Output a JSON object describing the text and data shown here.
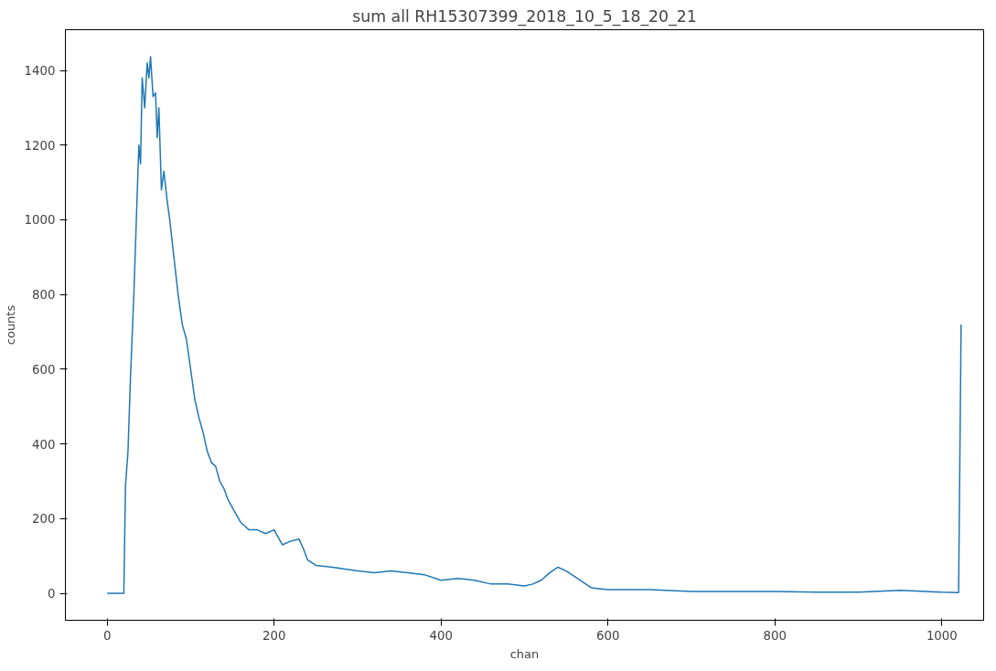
{
  "chart_data": {
    "type": "line",
    "title": "sum all RH15307399_2018_10_5_18_20_21",
    "xlabel": "chan",
    "ylabel": "counts",
    "x": [
      0,
      10,
      20,
      22,
      25,
      28,
      32,
      35,
      38,
      40,
      42,
      45,
      48,
      50,
      52,
      55,
      58,
      60,
      62,
      65,
      68,
      72,
      75,
      80,
      85,
      90,
      95,
      100,
      105,
      110,
      115,
      120,
      125,
      130,
      135,
      140,
      145,
      150,
      155,
      160,
      165,
      170,
      180,
      190,
      200,
      205,
      210,
      220,
      230,
      235,
      240,
      250,
      270,
      300,
      320,
      340,
      360,
      380,
      400,
      420,
      440,
      460,
      480,
      500,
      510,
      520,
      530,
      540,
      550,
      560,
      570,
      580,
      600,
      650,
      700,
      750,
      800,
      850,
      900,
      950,
      1000,
      1020,
      1023
    ],
    "series": [
      {
        "color": "#1f77b4",
        "values": [
          0,
          0,
          0,
          290,
          380,
          580,
          800,
          1000,
          1200,
          1150,
          1380,
          1300,
          1420,
          1380,
          1437,
          1330,
          1340,
          1220,
          1300,
          1080,
          1130,
          1050,
          1000,
          900,
          800,
          720,
          680,
          600,
          520,
          470,
          430,
          380,
          350,
          340,
          300,
          280,
          250,
          230,
          210,
          190,
          180,
          170,
          170,
          160,
          170,
          150,
          130,
          140,
          145,
          120,
          90,
          75,
          70,
          60,
          55,
          60,
          55,
          50,
          35,
          40,
          35,
          25,
          25,
          20,
          25,
          35,
          55,
          70,
          60,
          45,
          30,
          15,
          10,
          10,
          5,
          5,
          5,
          3,
          3,
          8,
          3,
          2,
          720
        ]
      }
    ],
    "xlim": [
      -50,
      1050
    ],
    "ylim": [
      -72,
      1509
    ],
    "xticks": [
      0,
      200,
      400,
      600,
      800,
      1000
    ],
    "yticks": [
      0,
      200,
      400,
      600,
      800,
      1000,
      1200,
      1400
    ],
    "grid": false,
    "line_style": "solid",
    "marker": "none"
  }
}
